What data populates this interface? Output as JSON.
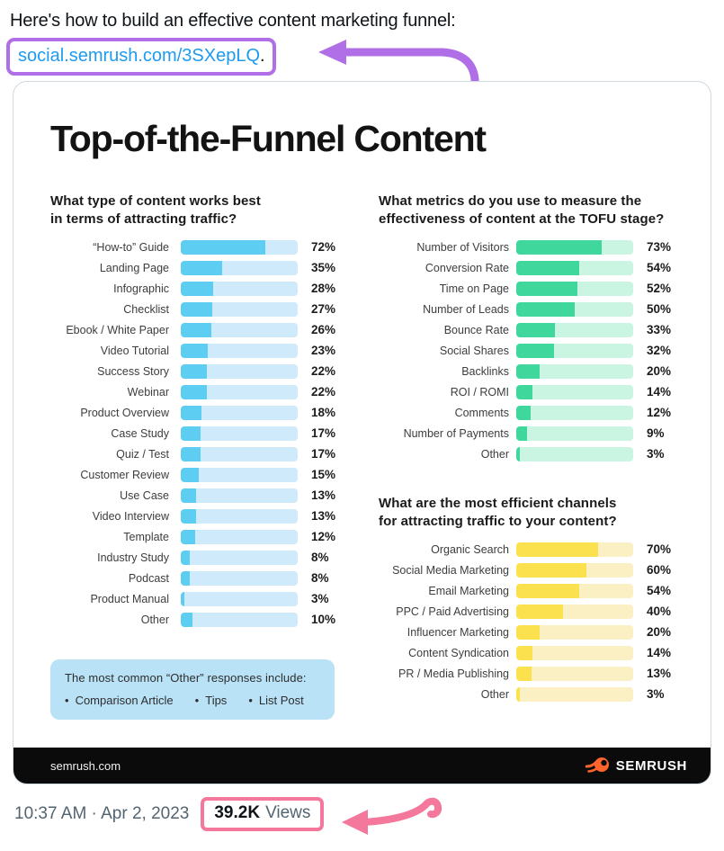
{
  "tweet": {
    "line1": "Here's how to build an effective content marketing funnel:",
    "link_text": "social.semrush.com/3SXepLQ",
    "link_suffix": ".",
    "timestamp": "10:37 AM · Apr 2, 2023",
    "views_count": "39.2K",
    "views_label": "Views"
  },
  "infographic": {
    "title": "Top-of-the-Funnel Content",
    "note": {
      "title": "The most common “Other” responses include:",
      "items": [
        "Comparison Article",
        "Tips",
        "List Post"
      ]
    },
    "footer": {
      "site": "semrush.com",
      "brand": "SEMRUSH"
    }
  },
  "colors": {
    "link_blue": "#1d9bf0",
    "annotation_purple": "#b06fe7",
    "annotation_pink": "#f4789b",
    "card_border": "#cfd9de",
    "footer_bar": "#0b0b0b",
    "brand_orange": "#ff642d",
    "note_background": "#b9e2f7",
    "timestamp_gray": "#536471"
  },
  "chart_data": [
    {
      "type": "bar",
      "orientation": "horizontal",
      "title": "What type of content works best\nin terms of attracting traffic?",
      "categories": [
        "“How-to” Guide",
        "Landing Page",
        "Infographic",
        "Checklist",
        "Ebook / White Paper",
        "Video Tutorial",
        "Success Story",
        "Webinar",
        "Product Overview",
        "Case Study",
        "Quiz / Test",
        "Customer Review",
        "Use Case",
        "Video Interview",
        "Template",
        "Industry Study",
        "Podcast",
        "Product Manual",
        "Other"
      ],
      "values": [
        72,
        35,
        28,
        27,
        26,
        23,
        22,
        22,
        18,
        17,
        17,
        15,
        13,
        13,
        12,
        8,
        8,
        3,
        10
      ],
      "value_suffix": "%",
      "xlim": [
        0,
        100
      ],
      "bar_color": "#5ecdf2",
      "track_color": "#cfeafb",
      "grid": false,
      "legend": false
    },
    {
      "type": "bar",
      "orientation": "horizontal",
      "title": "What metrics do you use to measure the\neffectiveness of content at the TOFU stage?",
      "categories": [
        "Number of Visitors",
        "Conversion Rate",
        "Time on Page",
        "Number of Leads",
        "Bounce Rate",
        "Social Shares",
        "Backlinks",
        "ROI / ROMI",
        "Comments",
        "Number of Payments",
        "Other"
      ],
      "values": [
        73,
        54,
        52,
        50,
        33,
        32,
        20,
        14,
        12,
        9,
        3
      ],
      "value_suffix": "%",
      "xlim": [
        0,
        100
      ],
      "bar_color": "#3fd79c",
      "track_color": "#c9f5e2",
      "grid": false,
      "legend": false
    },
    {
      "type": "bar",
      "orientation": "horizontal",
      "title": "What are the most efficient channels\nfor attracting traffic to your content?",
      "categories": [
        "Organic Search",
        "Social Media Marketing",
        "Email Marketing",
        "PPC / Paid Advertising",
        "Influencer Marketing",
        "Content Syndication",
        "PR / Media Publishing",
        "Other"
      ],
      "values": [
        70,
        60,
        54,
        40,
        20,
        14,
        13,
        3
      ],
      "value_suffix": "%",
      "xlim": [
        0,
        100
      ],
      "bar_color": "#fce14e",
      "track_color": "#fbf0c3",
      "grid": false,
      "legend": false
    }
  ]
}
